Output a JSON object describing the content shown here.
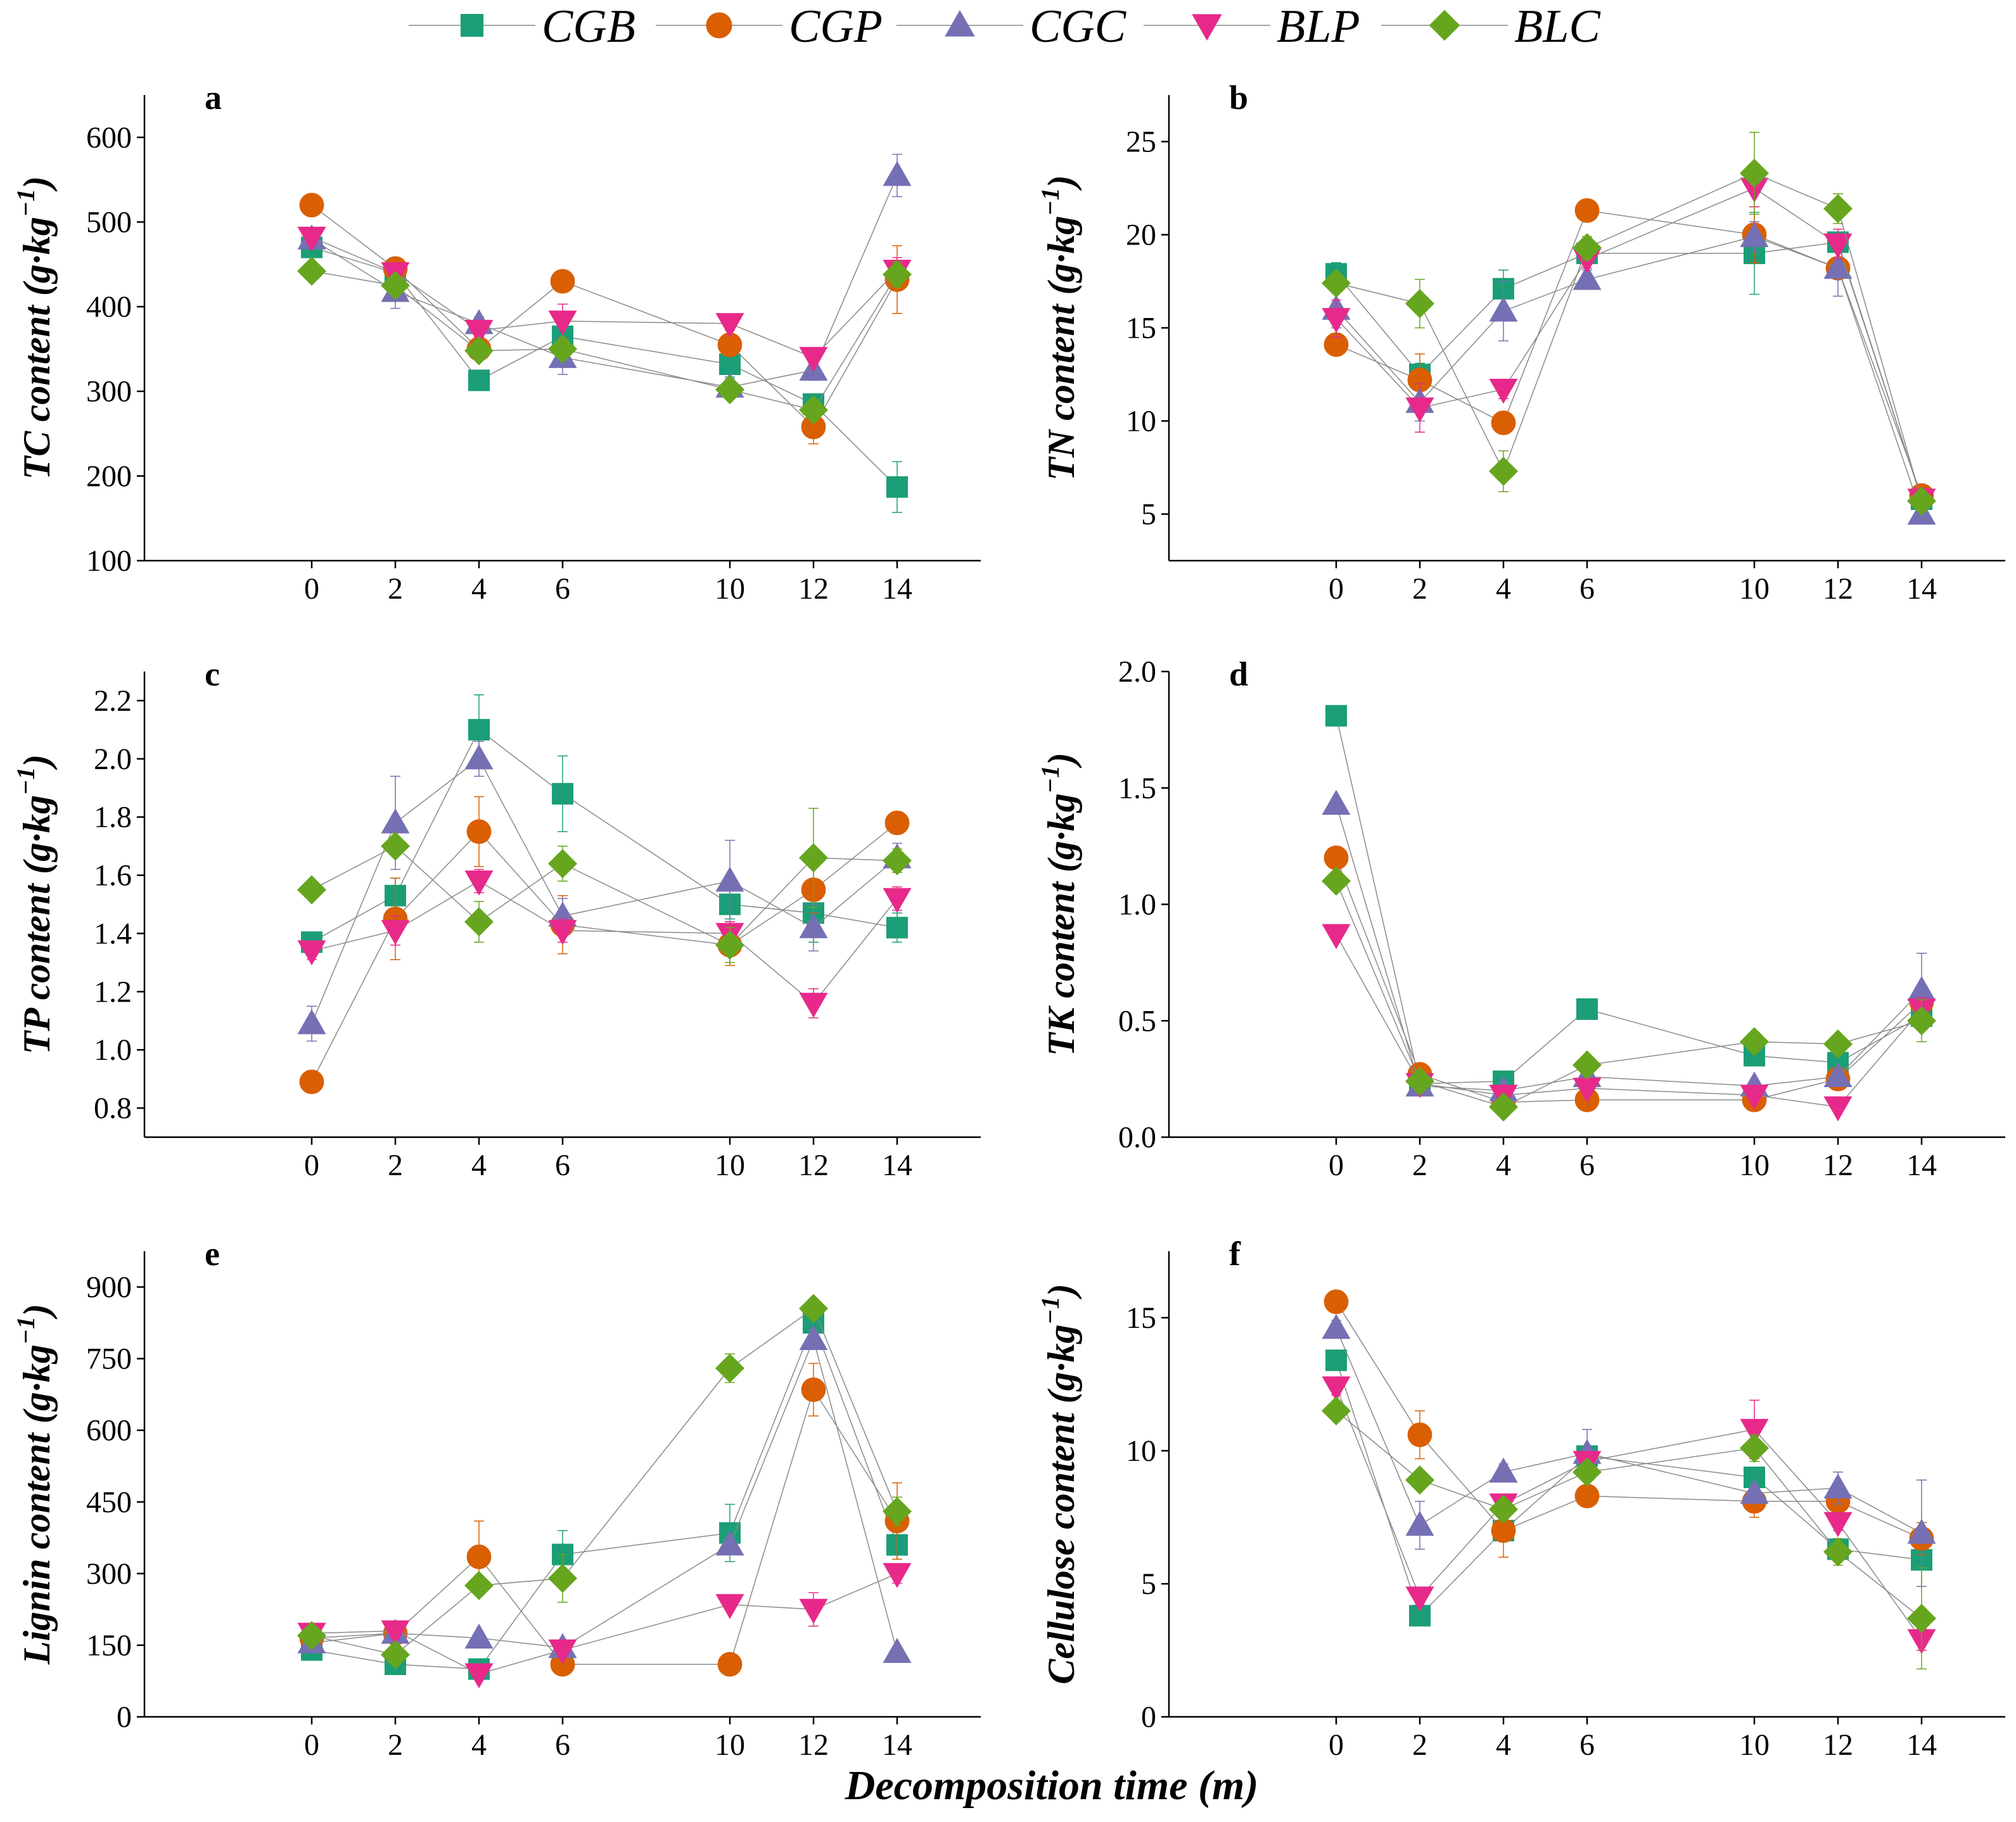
{
  "legend": [
    {
      "name": "CGB",
      "marker": "square",
      "color": "#1b9e77"
    },
    {
      "name": "CGP",
      "marker": "circle",
      "color": "#d95f02"
    },
    {
      "name": "CGC",
      "marker": "triangle-up",
      "color": "#7570b3"
    },
    {
      "name": "BLP",
      "marker": "triangle-down",
      "color": "#e7298a"
    },
    {
      "name": "BLC",
      "marker": "diamond",
      "color": "#66a61e"
    }
  ],
  "xlabel": "Decomposition time (m)",
  "chart_data": [
    {
      "type": "line",
      "panel": "a",
      "ylabel_main": "TC content",
      "ylabel_unit": "(g·kg",
      "ylabel_sup": "−1",
      "ylabel_close": ")",
      "x": [
        0,
        2,
        4,
        6,
        10,
        12,
        14
      ],
      "xlim": [
        -4,
        16
      ],
      "xticks": [
        0,
        2,
        4,
        6,
        10,
        12,
        14
      ],
      "ylim": [
        100,
        650
      ],
      "yticks": [
        100,
        200,
        300,
        400,
        500,
        600
      ],
      "series": [
        {
          "name": "CGB",
          "values": [
            470,
            440,
            313,
            365,
            332,
            285,
            187
          ],
          "err": [
            10,
            10,
            10,
            10,
            15,
            12,
            30
          ]
        },
        {
          "name": "CGP",
          "values": [
            520,
            445,
            350,
            430,
            355,
            258,
            432
          ],
          "err": [
            8,
            8,
            10,
            8,
            12,
            20,
            40
          ]
        },
        {
          "name": "CGC",
          "values": [
            480,
            418,
            380,
            340,
            305,
            325,
            555
          ],
          "err": [
            8,
            20,
            8,
            20,
            10,
            12,
            25
          ]
        },
        {
          "name": "BLP",
          "values": [
            482,
            440,
            372,
            383,
            380,
            340,
            443
          ],
          "err": [
            8,
            8,
            8,
            20,
            8,
            8,
            15
          ]
        },
        {
          "name": "BLC",
          "values": [
            442,
            425,
            348,
            350,
            302,
            278,
            438
          ],
          "err": [
            8,
            8,
            8,
            10,
            8,
            12,
            15
          ]
        }
      ]
    },
    {
      "type": "line",
      "panel": "b",
      "ylabel_main": "TN content",
      "ylabel_unit": "(g·kg",
      "ylabel_sup": "−1",
      "ylabel_close": ")",
      "x": [
        0,
        2,
        4,
        6,
        10,
        12,
        14
      ],
      "xlim": [
        -4,
        16
      ],
      "xticks": [
        0,
        2,
        4,
        6,
        10,
        12,
        14
      ],
      "ylim": [
        2.5,
        27.5
      ],
      "yticks": [
        5,
        10,
        15,
        20,
        25
      ],
      "series": [
        {
          "name": "CGB",
          "values": [
            17.9,
            12.5,
            17.1,
            19.0,
            19.0,
            19.6,
            5.8
          ],
          "err": [
            0.6,
            0.6,
            1.0,
            0.5,
            2.2,
            0.5,
            0.5
          ]
        },
        {
          "name": "CGP",
          "values": [
            14.1,
            12.2,
            9.9,
            21.3,
            20.0,
            18.2,
            6.0
          ],
          "err": [
            0.4,
            1.4,
            0.5,
            0.4,
            1.5,
            0.5,
            0.4
          ]
        },
        {
          "name": "CGC",
          "values": [
            16.0,
            11.0,
            15.9,
            17.6,
            19.9,
            18.2,
            5.0
          ],
          "err": [
            1.0,
            1.0,
            1.6,
            0.5,
            0.8,
            1.5,
            0.3
          ]
        },
        {
          "name": "BLP",
          "values": [
            15.5,
            10.7,
            11.7,
            18.7,
            22.5,
            19.5,
            5.8
          ],
          "err": [
            1.0,
            1.3,
            0.5,
            0.5,
            1.0,
            0.8,
            0.6
          ]
        },
        {
          "name": "BLC",
          "values": [
            17.4,
            16.3,
            7.3,
            19.3,
            23.3,
            21.4,
            5.7
          ],
          "err": [
            0.5,
            1.3,
            1.1,
            0.6,
            2.2,
            0.8,
            0.4
          ]
        }
      ]
    },
    {
      "type": "line",
      "panel": "c",
      "ylabel_main": "TP content",
      "ylabel_unit": "(g·kg",
      "ylabel_sup": "−1",
      "ylabel_close": ")",
      "x": [
        0,
        2,
        4,
        6,
        10,
        12,
        14
      ],
      "xlim": [
        -4,
        16
      ],
      "xticks": [
        0,
        2,
        4,
        6,
        10,
        12,
        14
      ],
      "ylim": [
        0.7,
        2.3
      ],
      "yticks": [
        0.8,
        1.0,
        1.2,
        1.4,
        1.6,
        1.8,
        2.0,
        2.2
      ],
      "series": [
        {
          "name": "CGB",
          "values": [
            1.37,
            1.53,
            2.1,
            1.88,
            1.5,
            1.47,
            1.42
          ],
          "err": [
            0.03,
            0.06,
            0.12,
            0.13,
            0.05,
            0.1,
            0.05
          ]
        },
        {
          "name": "CGP",
          "values": [
            0.89,
            1.45,
            1.75,
            1.43,
            1.36,
            1.55,
            1.78
          ],
          "err": [
            0.02,
            0.14,
            0.12,
            0.1,
            0.07,
            0.08,
            0.03
          ]
        },
        {
          "name": "CGC",
          "values": [
            1.09,
            1.78,
            2.0,
            1.46,
            1.58,
            1.42,
            1.66
          ],
          "err": [
            0.06,
            0.16,
            0.06,
            0.06,
            0.14,
            0.08,
            0.05
          ]
        },
        {
          "name": "BLP",
          "values": [
            1.34,
            1.41,
            1.58,
            1.41,
            1.4,
            1.16,
            1.52
          ],
          "err": [
            0.03,
            0.05,
            0.04,
            0.04,
            0.04,
            0.05,
            0.04
          ]
        },
        {
          "name": "BLC",
          "values": [
            1.55,
            1.7,
            1.44,
            1.64,
            1.36,
            1.66,
            1.65
          ],
          "err": [
            0.02,
            0.02,
            0.07,
            0.06,
            0.06,
            0.17,
            0.04
          ]
        }
      ]
    },
    {
      "type": "line",
      "panel": "d",
      "ylabel_main": "TK content",
      "ylabel_unit": "(g·kg",
      "ylabel_sup": "−1",
      "ylabel_close": ")",
      "x": [
        0,
        2,
        4,
        6,
        10,
        12,
        14
      ],
      "xlim": [
        -4,
        16
      ],
      "xticks": [
        0,
        2,
        4,
        6,
        10,
        12,
        14
      ],
      "ylim": [
        0.0,
        2.0
      ],
      "yticks": [
        0.0,
        0.5,
        1.0,
        1.5,
        2.0
      ],
      "series": [
        {
          "name": "CGB",
          "values": [
            1.81,
            0.23,
            0.24,
            0.55,
            0.35,
            0.32,
            0.52
          ],
          "err": [
            0.02,
            0.02,
            0.02,
            0.02,
            0.03,
            0.03,
            0.05
          ]
        },
        {
          "name": "CGP",
          "values": [
            1.2,
            0.27,
            0.15,
            0.16,
            0.16,
            0.25,
            0.58
          ],
          "err": [
            0.02,
            0.02,
            0.02,
            0.02,
            0.02,
            0.02,
            0.05
          ]
        },
        {
          "name": "CGC",
          "values": [
            1.43,
            0.22,
            0.2,
            0.26,
            0.22,
            0.26,
            0.63
          ],
          "err": [
            0.02,
            0.02,
            0.02,
            0.02,
            0.02,
            0.03,
            0.16
          ]
        },
        {
          "name": "BLP",
          "values": [
            0.87,
            0.23,
            0.18,
            0.21,
            0.18,
            0.13,
            0.55
          ],
          "err": [
            0.02,
            0.02,
            0.02,
            0.02,
            0.02,
            0.02,
            0.05
          ]
        },
        {
          "name": "BLC",
          "values": [
            1.1,
            0.24,
            0.13,
            0.31,
            0.41,
            0.4,
            0.5
          ],
          "err": [
            0.02,
            0.02,
            0.02,
            0.02,
            0.03,
            0.02,
            0.09
          ]
        }
      ]
    },
    {
      "type": "line",
      "panel": "e",
      "ylabel_main": "Lignin content",
      "ylabel_unit": "(g·kg",
      "ylabel_sup": "−1",
      "ylabel_close": ")",
      "x": [
        0,
        2,
        4,
        6,
        10,
        12,
        14
      ],
      "xlim": [
        -4,
        16
      ],
      "xticks": [
        0,
        2,
        4,
        6,
        10,
        12,
        14
      ],
      "ylim": [
        0,
        975
      ],
      "yticks": [
        0,
        150,
        300,
        450,
        600,
        750,
        900
      ],
      "series": [
        {
          "name": "CGB",
          "values": [
            140,
            110,
            100,
            340,
            385,
            825,
            360
          ],
          "err": [
            10,
            10,
            10,
            50,
            60,
            40,
            30
          ]
        },
        {
          "name": "CGP",
          "values": [
            165,
            175,
            335,
            110,
            110,
            685,
            410
          ],
          "err": [
            10,
            10,
            75,
            10,
            10,
            55,
            80
          ]
        },
        {
          "name": "CGC",
          "values": [
            155,
            175,
            165,
            145,
            360,
            790,
            135
          ],
          "err": [
            10,
            10,
            10,
            10,
            10,
            20,
            10
          ]
        },
        {
          "name": "BLP",
          "values": [
            175,
            180,
            90,
            140,
            235,
            225,
            300
          ],
          "err": [
            10,
            10,
            10,
            10,
            10,
            35,
            20
          ]
        },
        {
          "name": "BLC",
          "values": [
            170,
            130,
            275,
            290,
            730,
            855,
            430
          ],
          "err": [
            10,
            10,
            20,
            50,
            30,
            15,
            30
          ]
        }
      ]
    },
    {
      "type": "line",
      "panel": "f",
      "ylabel_main": "Cellulose content",
      "ylabel_unit": "(g·kg",
      "ylabel_sup": "−1",
      "ylabel_close": ")",
      "x": [
        0,
        2,
        4,
        6,
        10,
        12,
        14
      ],
      "xlim": [
        -4,
        16
      ],
      "xticks": [
        0,
        2,
        4,
        6,
        10,
        12,
        14
      ],
      "ylim": [
        0,
        17.5
      ],
      "yticks": [
        0,
        5,
        10,
        15
      ],
      "series": [
        {
          "name": "CGB",
          "values": [
            13.4,
            3.8,
            7.0,
            9.8,
            9.0,
            6.3,
            5.9
          ],
          "err": [
            0.3,
            0.3,
            0.3,
            0.3,
            0.3,
            0.3,
            0.3
          ]
        },
        {
          "name": "CGP",
          "values": [
            15.6,
            10.6,
            7.0,
            8.3,
            8.1,
            8.1,
            6.7
          ],
          "err": [
            0.3,
            0.9,
            1.0,
            0.3,
            0.6,
            0.3,
            0.6
          ]
        },
        {
          "name": "CGC",
          "values": [
            14.6,
            7.2,
            9.2,
            9.9,
            8.4,
            8.6,
            6.9
          ],
          "err": [
            0.3,
            0.9,
            0.3,
            0.9,
            0.3,
            0.6,
            2.0
          ]
        },
        {
          "name": "BLP",
          "values": [
            12.4,
            4.5,
            8.0,
            9.6,
            10.8,
            7.3,
            2.9
          ],
          "err": [
            0.3,
            0.3,
            0.3,
            0.3,
            1.1,
            0.3,
            0.4
          ]
        },
        {
          "name": "BLC",
          "values": [
            11.5,
            8.9,
            7.8,
            9.2,
            10.1,
            6.2,
            3.7
          ],
          "err": [
            0.3,
            0.3,
            0.3,
            0.3,
            0.5,
            0.5,
            1.9
          ]
        }
      ]
    }
  ]
}
